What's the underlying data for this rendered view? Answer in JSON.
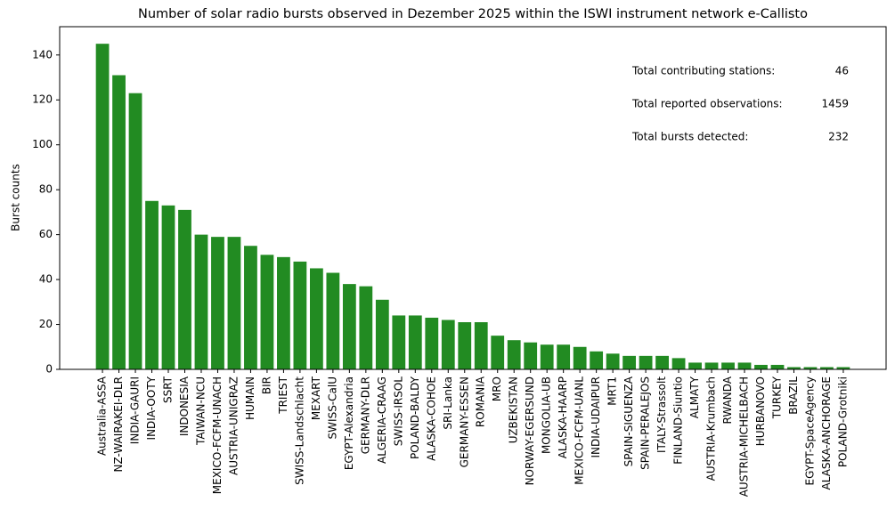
{
  "chart_data": {
    "type": "bar",
    "title": "Number of solar radio bursts observed in Dezember 2025 within the ISWI instrument network e-Callisto",
    "y_label": "Burst counts",
    "categories": [
      "Australia-ASSA",
      "NZ-WAIRAKEI-DLR",
      "INDIA-GAURI",
      "INDIA-OOTY",
      "SSRT",
      "INDONESIA",
      "TAIWAN-NCU",
      "MEXICO-FCFM-UNACH",
      "AUSTRIA-UNIGRAZ",
      "HUMAIN",
      "BIR",
      "TRIEST",
      "SWISS-Landschlacht",
      "MEXART",
      "SWISS-CalU",
      "EGYPT-Alexandria",
      "GERMANY-DLR",
      "ALGERIA-CRAAG",
      "SWISS-IRSOL",
      "POLAND-BALDY",
      "ALASKA-COHOE",
      "SRI-Lanka",
      "GERMANY-ESSEN",
      "ROMANIA",
      "MRO",
      "UZBEKISTAN",
      "NORWAY-EGERSUND",
      "MONGOLIA-UB",
      "ALASKA-HAARP",
      "MEXICO-FCFM-UANL",
      "INDIA-UDAIPUR",
      "MRT1",
      "SPAIN-SIGUENZA",
      "SPAIN-PERALEJOS",
      "ITALY-Strassolt",
      "FINLAND-Siuntio",
      "ALMATY",
      "AUSTRIA-Krumbach",
      "RWANDA",
      "AUSTRIA-MICHELBACH",
      "HURBANOVO",
      "TURKEY",
      "BRAZIL",
      "EGYPT-SpaceAgency",
      "ALASKA-ANCHORAGE",
      "POLAND-Grotniki"
    ],
    "values": [
      145,
      131,
      123,
      75,
      73,
      71,
      60,
      59,
      59,
      55,
      51,
      50,
      48,
      45,
      43,
      38,
      37,
      31,
      24,
      24,
      23,
      22,
      21,
      21,
      15,
      13,
      12,
      11,
      11,
      10,
      8,
      7,
      6,
      6,
      6,
      5,
      3,
      3,
      3,
      3,
      2,
      2,
      1,
      1,
      1,
      1
    ],
    "color": "#228b22",
    "ylim": [
      0,
      152.6
    ],
    "yticks": [
      0,
      20,
      40,
      60,
      80,
      100,
      120,
      140
    ],
    "grid": false,
    "annotations": [
      {
        "label": "Total contributing stations:",
        "value": 46
      },
      {
        "label": "Total reported observations:",
        "value": 1459
      },
      {
        "label": "Total bursts detected:",
        "value": 232
      }
    ]
  }
}
